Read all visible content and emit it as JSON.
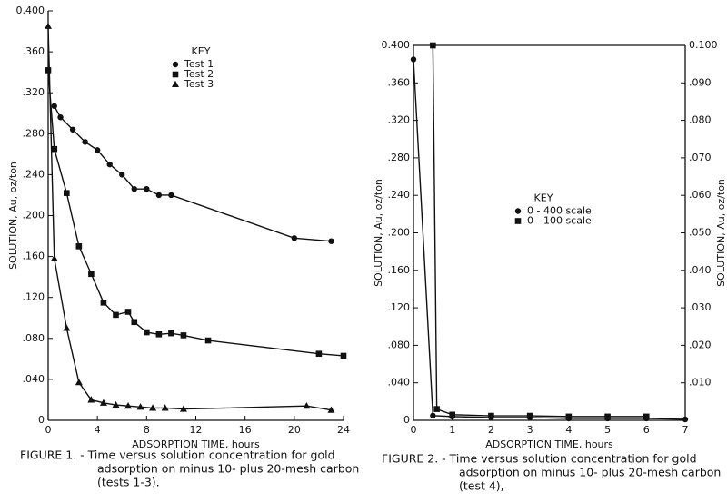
{
  "chart_data": [
    {
      "type": "scatter",
      "xlabel": "ADSORPTION TIME, hours",
      "ylabel": "SOLUTION, Au, oz/ton",
      "caption": [
        "FIGURE 1. - Time versus solution concentration for gold",
        "adsorption on minus 10- plus 20-mesh carbon",
        "(tests 1-3)."
      ],
      "legend_title": "KEY",
      "legend": "upper center",
      "xlim": [
        0,
        24
      ],
      "xticks": [
        0,
        4,
        8,
        12,
        16,
        20,
        24
      ],
      "ylim": [
        0,
        0.4
      ],
      "yticks": [
        0,
        {
          "value": 0.04,
          "label": ".040"
        },
        {
          "value": 0.08,
          "label": ".080"
        },
        {
          "value": 0.12,
          "label": ".120"
        },
        {
          "value": 0.16,
          "label": ".160"
        },
        {
          "value": 0.2,
          "label": ".200"
        },
        {
          "value": 0.24,
          "label": ".240"
        },
        {
          "value": 0.28,
          "label": ".280"
        },
        {
          "value": 0.32,
          "label": ".320"
        },
        {
          "value": 0.36,
          "label": ".360"
        },
        {
          "value": 0.4,
          "label": "0.400"
        }
      ],
      "series": [
        {
          "name": "Test 1",
          "marker": "circle",
          "color": "#111111",
          "x": [
            0.5,
            1,
            2,
            3,
            4,
            5,
            6,
            7,
            8,
            9,
            10,
            20,
            23
          ],
          "values": [
            0.307,
            0.296,
            0.284,
            0.272,
            0.264,
            0.25,
            0.24,
            0.226,
            0.226,
            0.22,
            0.22,
            0.178,
            0.175
          ]
        },
        {
          "name": "Test 2",
          "marker": "square",
          "color": "#111111",
          "x": [
            0,
            0.5,
            1.5,
            2.5,
            3.5,
            4.5,
            5.5,
            6.5,
            7,
            8,
            9,
            10,
            11,
            13,
            22,
            24
          ],
          "values": [
            0.342,
            0.265,
            0.222,
            0.17,
            0.143,
            0.115,
            0.103,
            0.106,
            0.096,
            0.086,
            0.084,
            0.085,
            0.083,
            0.078,
            0.065,
            0.063
          ]
        },
        {
          "name": "Test 3",
          "marker": "triangle",
          "color": "#111111",
          "x": [
            0,
            0.5,
            1.5,
            2.5,
            3.5,
            4.5,
            5.5,
            6.5,
            7.5,
            8.5,
            9.5,
            11,
            21,
            23
          ],
          "values": [
            0.385,
            0.158,
            0.09,
            0.037,
            0.02,
            0.017,
            0.015,
            0.014,
            0.013,
            0.012,
            0.012,
            0.011,
            0.014,
            0.01
          ]
        }
      ]
    },
    {
      "type": "scatter",
      "xlabel": "ADSORPTION TIME, hours",
      "ylabel": "SOLUTION, Au, oz/ton",
      "y2label": "SOLUTION, Au, oz/ton",
      "caption": [
        "FIGURE 2. - Time versus solution concentration for gold",
        "adsorption on minus 10- plus 20-mesh carbon",
        "(test 4),"
      ],
      "legend_title": "KEY",
      "legend": "center",
      "xlim": [
        0,
        7
      ],
      "xticks": [
        0,
        1,
        2,
        3,
        4,
        5,
        6,
        7
      ],
      "ylim": [
        0,
        0.4
      ],
      "yticks": [
        0,
        {
          "value": 0.04,
          "label": ".040"
        },
        {
          "value": 0.08,
          "label": ".080"
        },
        {
          "value": 0.12,
          "label": ".120"
        },
        {
          "value": 0.16,
          "label": ".160"
        },
        {
          "value": 0.2,
          "label": ".200"
        },
        {
          "value": 0.24,
          "label": ".240"
        },
        {
          "value": 0.28,
          "label": ".280"
        },
        {
          "value": 0.32,
          "label": ".320"
        },
        {
          "value": 0.36,
          "label": ".360"
        },
        {
          "value": 0.4,
          "label": "0.400"
        }
      ],
      "y2lim": [
        0,
        0.1
      ],
      "y2ticks": [
        {
          "value": 0.01,
          "label": ".010"
        },
        {
          "value": 0.02,
          "label": ".020"
        },
        {
          "value": 0.03,
          "label": ".030"
        },
        {
          "value": 0.04,
          "label": ".040"
        },
        {
          "value": 0.05,
          "label": ".050"
        },
        {
          "value": 0.06,
          "label": ".060"
        },
        {
          "value": 0.07,
          "label": ".070"
        },
        {
          "value": 0.08,
          "label": ".080"
        },
        {
          "value": 0.09,
          "label": ".090"
        },
        {
          "value": 0.1,
          "label": "0.100"
        }
      ],
      "series": [
        {
          "name": "0 - 400 scale",
          "marker": "circle",
          "color": "#111111",
          "x": [
            0,
            0.5,
            1,
            2,
            3,
            4,
            5,
            6,
            7
          ],
          "values": [
            0.385,
            0.005,
            0.004,
            0.003,
            0.003,
            0.002,
            0.002,
            0.002,
            0.001
          ]
        },
        {
          "name": "0 - 100 scale",
          "marker": "square",
          "color": "#111111",
          "axis": "y2",
          "x": [
            0.5,
            0.6,
            1,
            2,
            3,
            4,
            5,
            6
          ],
          "values": [
            0.1,
            0.003,
            0.0015,
            0.0012,
            0.0012,
            0.001,
            0.001,
            0.001
          ]
        }
      ]
    }
  ]
}
